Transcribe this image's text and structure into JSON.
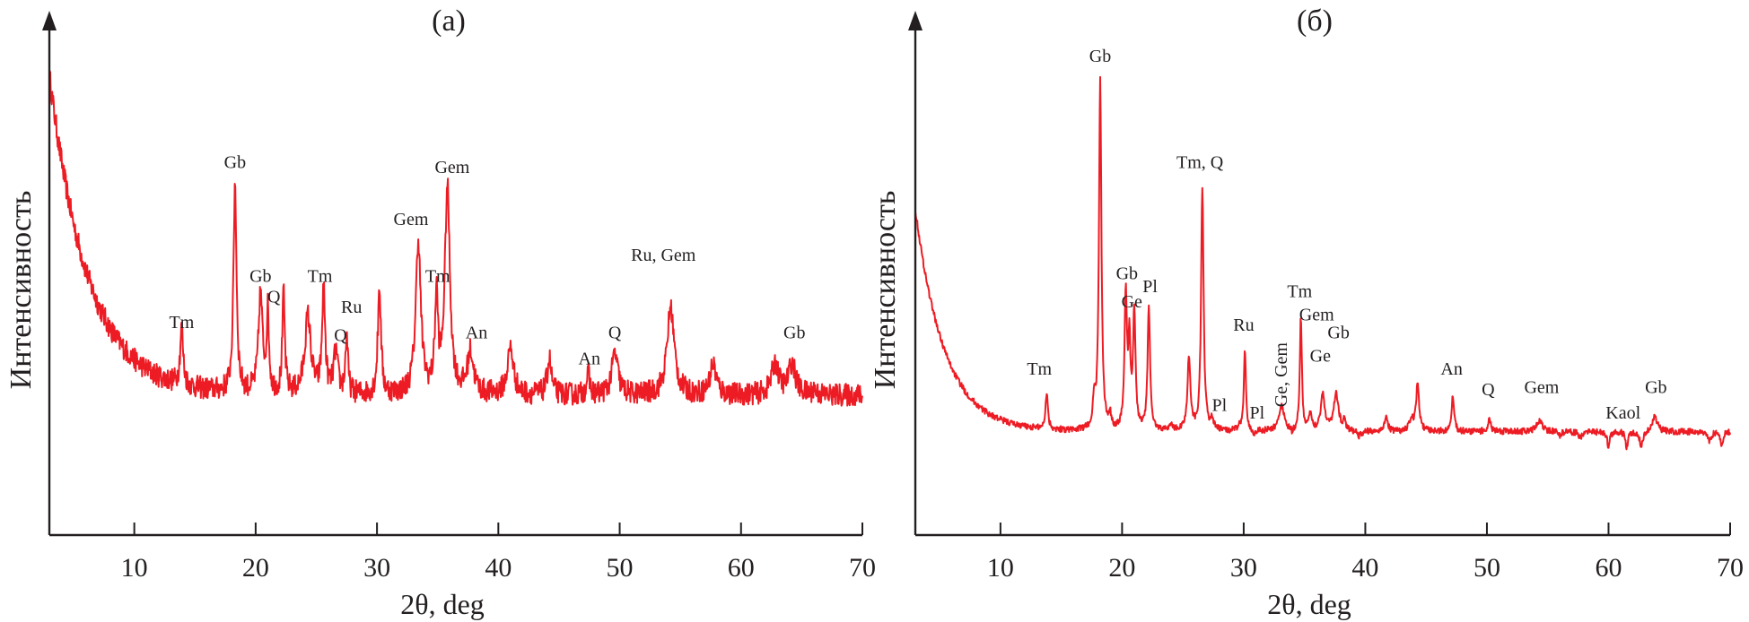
{
  "chart_data": [
    {
      "type": "line",
      "panel_label": "(a)",
      "xlabel": "2θ, deg",
      "ylabel": "Интенсивность",
      "xlim": [
        3,
        70
      ],
      "ylim": [
        0,
        100
      ],
      "xticks": [
        10,
        20,
        30,
        40,
        50,
        60,
        70
      ],
      "y_unit": "relative intensity (arbitrary, axis unlabeled)",
      "line_color": "#ed1c24",
      "background": {
        "start_x": 3,
        "start_y": 89,
        "baseline": 27,
        "decay": 3.2,
        "floor_x": 17,
        "noise": 2.2
      },
      "peaks": [
        {
          "x": 13.9,
          "y": 38,
          "w": 0.15
        },
        {
          "x": 18.3,
          "y": 67.5,
          "w": 0.15
        },
        {
          "x": 20.4,
          "y": 46,
          "w": 0.2
        },
        {
          "x": 21.0,
          "y": 42,
          "w": 0.12
        },
        {
          "x": 22.3,
          "y": 46,
          "w": 0.12
        },
        {
          "x": 24.3,
          "y": 42,
          "w": 0.3
        },
        {
          "x": 25.6,
          "y": 47,
          "w": 0.15
        },
        {
          "x": 26.6,
          "y": 35,
          "w": 0.2
        },
        {
          "x": 27.5,
          "y": 38,
          "w": 0.12
        },
        {
          "x": 30.2,
          "y": 48,
          "w": 0.15
        },
        {
          "x": 33.4,
          "y": 56.5,
          "w": 0.25
        },
        {
          "x": 34.9,
          "y": 45,
          "w": 0.15
        },
        {
          "x": 35.8,
          "y": 66.7,
          "w": 0.25
        },
        {
          "x": 37.7,
          "y": 35,
          "w": 0.3
        },
        {
          "x": 41.0,
          "y": 36,
          "w": 0.3
        },
        {
          "x": 44.2,
          "y": 34,
          "w": 0.2
        },
        {
          "x": 47.4,
          "y": 31,
          "w": 0.15
        },
        {
          "x": 49.6,
          "y": 35,
          "w": 0.3
        },
        {
          "x": 54.2,
          "y": 44,
          "w": 0.35
        },
        {
          "x": 57.7,
          "y": 33,
          "w": 0.3
        },
        {
          "x": 62.8,
          "y": 33,
          "w": 0.35
        },
        {
          "x": 64.2,
          "y": 33,
          "w": 0.35
        },
        {
          "x": 66.0,
          "y": 28,
          "w": 0.2
        }
      ],
      "annotations": [
        {
          "text": "Tm",
          "x": 13.9,
          "y": 40
        },
        {
          "text": "Gb",
          "x": 18.3,
          "y": 71
        },
        {
          "text": "Gb",
          "x": 20.4,
          "y": 49
        },
        {
          "text": "Q",
          "x": 21.5,
          "y": 45
        },
        {
          "text": "Tm",
          "x": 25.3,
          "y": 49
        },
        {
          "text": "Ru",
          "x": 27.9,
          "y": 43
        },
        {
          "text": "Q",
          "x": 27.0,
          "y": 37.5
        },
        {
          "text": "Tm",
          "x": 35.0,
          "y": 49
        },
        {
          "text": "Gem",
          "x": 32.8,
          "y": 60
        },
        {
          "text": "Gem",
          "x": 36.2,
          "y": 70
        },
        {
          "text": "An",
          "x": 38.2,
          "y": 38
        },
        {
          "text": "An",
          "x": 47.5,
          "y": 33
        },
        {
          "text": "Q",
          "x": 49.6,
          "y": 38
        },
        {
          "text": "Ru, Gem",
          "x": 53.6,
          "y": 53
        },
        {
          "text": "Gb",
          "x": 64.4,
          "y": 38
        }
      ]
    },
    {
      "type": "line",
      "panel_label": "(б)",
      "xlabel": "2θ, deg",
      "ylabel": "Интенсивность",
      "xlim": [
        3,
        70
      ],
      "ylim": [
        0,
        100
      ],
      "xticks": [
        10,
        20,
        30,
        40,
        50,
        60,
        70
      ],
      "y_unit": "relative intensity (arbitrary, axis unlabeled)",
      "line_color": "#ed1c24",
      "background": {
        "start_x": 3,
        "start_y": 63,
        "baseline": 20,
        "decay": 2.4,
        "floor_x": 20,
        "noise": 0.6
      },
      "peaks": [
        {
          "x": 13.8,
          "y": 27,
          "w": 0.12
        },
        {
          "x": 17.7,
          "y": 25,
          "w": 0.12
        },
        {
          "x": 18.2,
          "y": 87.5,
          "w": 0.12
        },
        {
          "x": 19.0,
          "y": 23,
          "w": 0.1
        },
        {
          "x": 20.3,
          "y": 46,
          "w": 0.12
        },
        {
          "x": 20.6,
          "y": 36,
          "w": 0.1
        },
        {
          "x": 21.0,
          "y": 43,
          "w": 0.12
        },
        {
          "x": 22.2,
          "y": 44,
          "w": 0.12
        },
        {
          "x": 24.0,
          "y": 21,
          "w": 0.2
        },
        {
          "x": 25.5,
          "y": 34,
          "w": 0.15
        },
        {
          "x": 26.6,
          "y": 67,
          "w": 0.12
        },
        {
          "x": 27.4,
          "y": 22,
          "w": 0.15
        },
        {
          "x": 28.0,
          "y": 20,
          "w": 0.15
        },
        {
          "x": 29.6,
          "y": 21,
          "w": 0.1
        },
        {
          "x": 30.1,
          "y": 36,
          "w": 0.1
        },
        {
          "x": 30.8,
          "y": 19,
          "w": 0.1
        },
        {
          "x": 33.1,
          "y": 25,
          "w": 0.25
        },
        {
          "x": 34.0,
          "y": 19,
          "w": 0.1
        },
        {
          "x": 34.7,
          "y": 42,
          "w": 0.1
        },
        {
          "x": 35.5,
          "y": 23,
          "w": 0.15
        },
        {
          "x": 36.5,
          "y": 27,
          "w": 0.2
        },
        {
          "x": 37.6,
          "y": 27,
          "w": 0.25
        },
        {
          "x": 38.3,
          "y": 22,
          "w": 0.1
        },
        {
          "x": 39.5,
          "y": 19,
          "w": 0.2
        },
        {
          "x": 40.5,
          "y": 20,
          "w": 0.2
        },
        {
          "x": 41.7,
          "y": 23,
          "w": 0.15
        },
        {
          "x": 42.4,
          "y": 20,
          "w": 0.15
        },
        {
          "x": 43.8,
          "y": 22,
          "w": 0.2
        },
        {
          "x": 44.3,
          "y": 29,
          "w": 0.15
        },
        {
          "x": 45.5,
          "y": 20,
          "w": 0.2
        },
        {
          "x": 47.2,
          "y": 27,
          "w": 0.12
        },
        {
          "x": 50.2,
          "y": 23,
          "w": 0.12
        },
        {
          "x": 50.7,
          "y": 20,
          "w": 0.15
        },
        {
          "x": 52.2,
          "y": 20,
          "w": 0.2
        },
        {
          "x": 54.3,
          "y": 22,
          "w": 0.3
        },
        {
          "x": 55.3,
          "y": 20,
          "w": 0.12
        },
        {
          "x": 56.0,
          "y": 19,
          "w": 0.12
        },
        {
          "x": 57.7,
          "y": 19,
          "w": 0.2
        },
        {
          "x": 60.0,
          "y": 17,
          "w": 0.12
        },
        {
          "x": 61.5,
          "y": 17,
          "w": 0.12
        },
        {
          "x": 62.7,
          "y": 17,
          "w": 0.15
        },
        {
          "x": 63.8,
          "y": 23,
          "w": 0.25
        },
        {
          "x": 66.3,
          "y": 20,
          "w": 0.25
        },
        {
          "x": 68.3,
          "y": 18,
          "w": 0.15
        },
        {
          "x": 69.3,
          "y": 17,
          "w": 0.12
        }
      ],
      "annotations": [
        {
          "text": "Tm",
          "x": 13.2,
          "y": 31
        },
        {
          "text": "Gb",
          "x": 18.2,
          "y": 91.5
        },
        {
          "text": "Gb",
          "x": 20.4,
          "y": 49.5
        },
        {
          "text": "Ge",
          "x": 20.8,
          "y": 44
        },
        {
          "text": "Pl",
          "x": 22.3,
          "y": 47
        },
        {
          "text": "Tm, Q",
          "x": 26.4,
          "y": 71
        },
        {
          "text": "Pl",
          "x": 28.0,
          "y": 24
        },
        {
          "text": "Ru",
          "x": 30.0,
          "y": 39.5
        },
        {
          "text": "Pl",
          "x": 31.1,
          "y": 22.5
        },
        {
          "text": "Ge, Gem",
          "x": 33.1,
          "y": 31,
          "vertical": true
        },
        {
          "text": "Tm",
          "x": 34.6,
          "y": 46
        },
        {
          "text": "Gem",
          "x": 36.0,
          "y": 41.5
        },
        {
          "text": "Gb",
          "x": 37.8,
          "y": 38
        },
        {
          "text": "Ge",
          "x": 36.3,
          "y": 33.5
        },
        {
          "text": "An",
          "x": 47.1,
          "y": 31
        },
        {
          "text": "Q",
          "x": 50.1,
          "y": 27
        },
        {
          "text": "Gem",
          "x": 54.5,
          "y": 27.5
        },
        {
          "text": "Kaol",
          "x": 61.2,
          "y": 22.5
        },
        {
          "text": "Gb",
          "x": 63.9,
          "y": 27.5
        }
      ]
    }
  ]
}
